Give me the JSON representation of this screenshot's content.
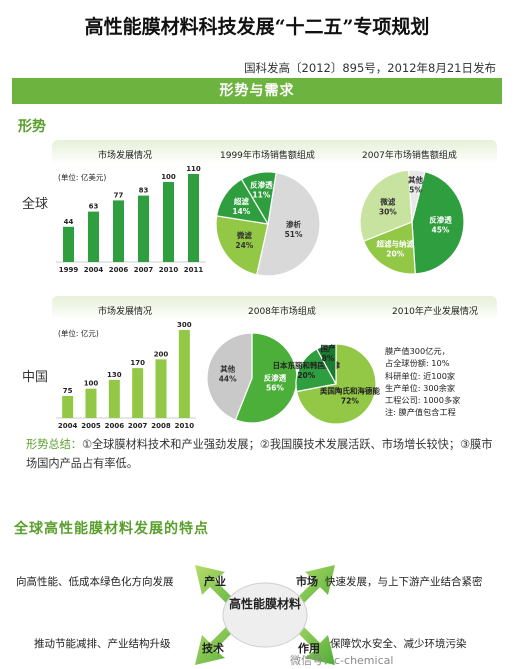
{
  "header": {
    "title": "高性能膜材料科技发展“十二五”专项规划",
    "subtitle": "国科发高〔2012〕895号，2012年8月21日发布",
    "band": "形势与需求",
    "section_label": "形势"
  },
  "global": {
    "side_label": "全球",
    "bar_title": "市场发展情况",
    "pie1_title": "1999年市场销售额组成",
    "pie2_title": "2007年市场销售额组成"
  },
  "china": {
    "side_label": "中国",
    "bar_title": "市场发展情况",
    "pie1_title": "2008年市场组成",
    "pie2_title": "2010年产业发展情况",
    "notes": [
      "膜产值300亿元，",
      "占全球份额: 10%",
      "科研单位: 近100家",
      "生产单位: 300余家",
      "工程公司: 1000多家",
      "注: 膜产值包含工程"
    ]
  },
  "chart_data": [
    {
      "type": "bar",
      "title": "市场发展情况",
      "unit_label": "(单位:  亿美元)",
      "categories": [
        "1999",
        "2004",
        "2006",
        "2007",
        "2010",
        "2011"
      ],
      "values": [
        44,
        63,
        77,
        83,
        100,
        110
      ],
      "color": "#2e9e3e"
    },
    {
      "type": "pie",
      "title": "1999年市场销售额组成",
      "slices": [
        {
          "label": "渗析",
          "value": 51,
          "text": "51%",
          "color": "#d9d9d9",
          "text_color": "#333333"
        },
        {
          "label": "微滤",
          "value": 24,
          "text": "24%",
          "color": "#92c846",
          "text_color": "#333333"
        },
        {
          "label": "超滤",
          "value": 14,
          "text": "14%",
          "color": "#2e9e3e",
          "text_color": "#ffffff"
        },
        {
          "label": "反渗透",
          "value": 11,
          "text": "11%",
          "color": "#2e9e3e",
          "text_color": "#ffffff"
        }
      ]
    },
    {
      "type": "pie",
      "title": "2007年市场销售额组成",
      "slices": [
        {
          "label": "反渗透",
          "value": 45,
          "text": "45%",
          "color": "#2e9e3e",
          "text_color": "#ffffff"
        },
        {
          "label": "超滤与纳滤",
          "value": 20,
          "text": "20%",
          "color": "#92c846",
          "text_color": "#ffffff"
        },
        {
          "label": "微滤",
          "value": 30,
          "text": "30%",
          "color": "#c8e3a0",
          "text_color": "#333333"
        },
        {
          "label": "其他",
          "value": 5,
          "text": "5%",
          "color": "#e8e8e8",
          "text_color": "#333333"
        }
      ]
    },
    {
      "type": "bar",
      "title": "市场发展情况",
      "unit_label": "(单位: 亿元)",
      "categories": [
        "2004",
        "2005",
        "2006",
        "2007",
        "2008",
        "2010"
      ],
      "values": [
        75,
        100,
        130,
        170,
        200,
        300
      ],
      "color": "#92c846"
    },
    {
      "type": "pie",
      "title": "2008年市场组成",
      "slices": [
        {
          "label": "反渗透",
          "value": 56,
          "text": "56%",
          "color": "#4caf3a",
          "text_color": "#ffffff"
        },
        {
          "label": "其他",
          "value": 44,
          "text": "44%",
          "color": "#c9c9c9",
          "text_color": "#333333"
        }
      ]
    },
    {
      "type": "pie",
      "title": "2010年产业发展情况",
      "slices": [
        {
          "label": "美国陶氏和海德能",
          "value": 72,
          "text": "72%",
          "color": "#92c846",
          "text_color": "#222222"
        },
        {
          "label": "日本东丽和韩国熊津",
          "value": 20,
          "text": "20%",
          "color": "#2e9e3e",
          "text_color": "#222222"
        },
        {
          "label": "国产",
          "value": 8,
          "text": "8%",
          "color": "#1a7a2e",
          "text_color": "#222222"
        }
      ]
    }
  ],
  "summary": {
    "label": "形势总结：",
    "text": "①全球膜材料技术和产业强劲发展；②我国膜技术发展活跃、市场增长较快；③膜市场国内产品占有率低。"
  },
  "features": {
    "title": "全球高性能膜材料发展的特点",
    "center": "高性能膜材料",
    "top_left_text": "向高性能、低成本绿色化方向发展",
    "top_left_key": "产业",
    "top_right_key": "市场",
    "top_right_text": "快速发展，与上下游产业结合紧密",
    "bottom_left_text": "推动节能减排、产业结构升级",
    "bottom_left_key": "技术",
    "bottom_right_key": "作用",
    "bottom_right_text": "保障饮水安全、减少环境污染"
  },
  "watermark": "微信号：c-chemical",
  "colors": {
    "accent": "#6db33f",
    "dark_green": "#2e9e3e",
    "light_green": "#92c846"
  }
}
